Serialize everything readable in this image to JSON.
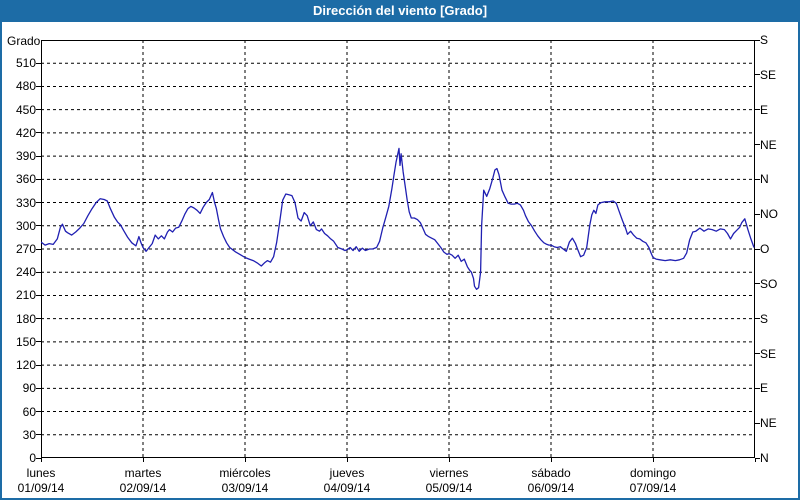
{
  "window": {
    "title": "Dirección del viento [Grado]"
  },
  "colors": {
    "titlebar_bg": "#1d6ca6",
    "page_border": "#1d6ca6",
    "line": "#2020b2",
    "grid": "#000000",
    "plot_bg": "#ffffff",
    "text": "#000000"
  },
  "chart_data": {
    "type": "line",
    "title": "Dirección del viento [Grado]",
    "ylabel": "Grado",
    "ylim": [
      0,
      540
    ],
    "grid": "dashed",
    "legend_position": "none",
    "y_left_ticks": [
      0,
      30,
      60,
      90,
      120,
      150,
      180,
      210,
      240,
      270,
      300,
      330,
      360,
      390,
      420,
      450,
      480,
      510
    ],
    "y_right_ticks": [
      {
        "deg": 540,
        "label": "S"
      },
      {
        "deg": 495,
        "label": "SE"
      },
      {
        "deg": 450,
        "label": "E"
      },
      {
        "deg": 405,
        "label": "NE"
      },
      {
        "deg": 360,
        "label": "N"
      },
      {
        "deg": 315,
        "label": "NO"
      },
      {
        "deg": 270,
        "label": "O"
      },
      {
        "deg": 225,
        "label": "SO"
      },
      {
        "deg": 180,
        "label": "S"
      },
      {
        "deg": 135,
        "label": "SE"
      },
      {
        "deg": 90,
        "label": "E"
      },
      {
        "deg": 45,
        "label": "NE"
      },
      {
        "deg": 0,
        "label": "N"
      }
    ],
    "x_days": [
      {
        "name": "lunes",
        "date": "01/09/14"
      },
      {
        "name": "martes",
        "date": "02/09/14"
      },
      {
        "name": "miércoles",
        "date": "03/09/14"
      },
      {
        "name": "jueves",
        "date": "04/09/14"
      },
      {
        "name": "viernes",
        "date": "05/09/14"
      },
      {
        "name": "sábado",
        "date": "06/09/14"
      },
      {
        "name": "domingo",
        "date": "07/09/14"
      }
    ],
    "xlim_days": [
      0,
      7
    ],
    "series": [
      {
        "name": "Dirección del viento",
        "unit": "Grado",
        "x_unit": "days",
        "points": [
          [
            0.0,
            279
          ],
          [
            0.04,
            275
          ],
          [
            0.08,
            277
          ],
          [
            0.12,
            276
          ],
          [
            0.16,
            283
          ],
          [
            0.19,
            298
          ],
          [
            0.21,
            302
          ],
          [
            0.24,
            293
          ],
          [
            0.26,
            291
          ],
          [
            0.3,
            288
          ],
          [
            0.34,
            292
          ],
          [
            0.38,
            297
          ],
          [
            0.42,
            303
          ],
          [
            0.46,
            313
          ],
          [
            0.5,
            322
          ],
          [
            0.54,
            330
          ],
          [
            0.58,
            335
          ],
          [
            0.62,
            334
          ],
          [
            0.65,
            332
          ],
          [
            0.68,
            322
          ],
          [
            0.72,
            311
          ],
          [
            0.75,
            305
          ],
          [
            0.78,
            301
          ],
          [
            0.81,
            294
          ],
          [
            0.85,
            285
          ],
          [
            0.89,
            278
          ],
          [
            0.93,
            274
          ],
          [
            0.96,
            286
          ],
          [
            0.98,
            278
          ],
          [
            1.0,
            272
          ],
          [
            1.03,
            267
          ],
          [
            1.06,
            272
          ],
          [
            1.09,
            277
          ],
          [
            1.12,
            288
          ],
          [
            1.15,
            283
          ],
          [
            1.18,
            287
          ],
          [
            1.21,
            283
          ],
          [
            1.24,
            292
          ],
          [
            1.26,
            295
          ],
          [
            1.29,
            292
          ],
          [
            1.32,
            297
          ],
          [
            1.35,
            298
          ],
          [
            1.38,
            306
          ],
          [
            1.41,
            315
          ],
          [
            1.44,
            322
          ],
          [
            1.47,
            325
          ],
          [
            1.5,
            323
          ],
          [
            1.53,
            320
          ],
          [
            1.56,
            316
          ],
          [
            1.59,
            324
          ],
          [
            1.62,
            330
          ],
          [
            1.65,
            334
          ],
          [
            1.68,
            343
          ],
          [
            1.7,
            331
          ],
          [
            1.72,
            322
          ],
          [
            1.74,
            308
          ],
          [
            1.76,
            296
          ],
          [
            1.79,
            286
          ],
          [
            1.82,
            278
          ],
          [
            1.85,
            272
          ],
          [
            1.88,
            269
          ],
          [
            1.91,
            266
          ],
          [
            1.95,
            263
          ],
          [
            2.0,
            259
          ],
          [
            2.04,
            257
          ],
          [
            2.08,
            255
          ],
          [
            2.12,
            252
          ],
          [
            2.16,
            248
          ],
          [
            2.19,
            252
          ],
          [
            2.22,
            255
          ],
          [
            2.25,
            253
          ],
          [
            2.28,
            260
          ],
          [
            2.31,
            278
          ],
          [
            2.34,
            305
          ],
          [
            2.37,
            333
          ],
          [
            2.4,
            341
          ],
          [
            2.43,
            340
          ],
          [
            2.46,
            339
          ],
          [
            2.49,
            330
          ],
          [
            2.52,
            310
          ],
          [
            2.55,
            306
          ],
          [
            2.58,
            317
          ],
          [
            2.61,
            313
          ],
          [
            2.64,
            300
          ],
          [
            2.67,
            305
          ],
          [
            2.7,
            295
          ],
          [
            2.73,
            293
          ],
          [
            2.75,
            296
          ],
          [
            2.78,
            290
          ],
          [
            2.81,
            287
          ],
          [
            2.84,
            283
          ],
          [
            2.87,
            280
          ],
          [
            2.91,
            272
          ],
          [
            2.95,
            270
          ],
          [
            2.98,
            268
          ],
          [
            3.0,
            269
          ],
          [
            3.03,
            272
          ],
          [
            3.06,
            268
          ],
          [
            3.09,
            273
          ],
          [
            3.12,
            267
          ],
          [
            3.15,
            271
          ],
          [
            3.18,
            268
          ],
          [
            3.22,
            270
          ],
          [
            3.25,
            270
          ],
          [
            3.29,
            272
          ],
          [
            3.32,
            280
          ],
          [
            3.35,
            297
          ],
          [
            3.38,
            311
          ],
          [
            3.41,
            325
          ],
          [
            3.44,
            348
          ],
          [
            3.46,
            365
          ],
          [
            3.48,
            382
          ],
          [
            3.51,
            400
          ],
          [
            3.52,
            378
          ],
          [
            3.53,
            393
          ],
          [
            3.55,
            370
          ],
          [
            3.57,
            352
          ],
          [
            3.59,
            333
          ],
          [
            3.61,
            318
          ],
          [
            3.63,
            310
          ],
          [
            3.66,
            310
          ],
          [
            3.69,
            308
          ],
          [
            3.72,
            304
          ],
          [
            3.75,
            295
          ],
          [
            3.77,
            289
          ],
          [
            3.8,
            286
          ],
          [
            3.83,
            284
          ],
          [
            3.86,
            282
          ],
          [
            3.89,
            277
          ],
          [
            3.92,
            272
          ],
          [
            3.95,
            266
          ],
          [
            3.98,
            263
          ],
          [
            4.0,
            264
          ],
          [
            4.03,
            262
          ],
          [
            4.06,
            258
          ],
          [
            4.09,
            262
          ],
          [
            4.12,
            254
          ],
          [
            4.15,
            257
          ],
          [
            4.18,
            247
          ],
          [
            4.2,
            243
          ],
          [
            4.22,
            240
          ],
          [
            4.24,
            232
          ],
          [
            4.25,
            222
          ],
          [
            4.27,
            218
          ],
          [
            4.29,
            220
          ],
          [
            4.31,
            240
          ],
          [
            4.32,
            300
          ],
          [
            4.34,
            346
          ],
          [
            4.37,
            338
          ],
          [
            4.4,
            348
          ],
          [
            4.43,
            362
          ],
          [
            4.45,
            372
          ],
          [
            4.47,
            374
          ],
          [
            4.49,
            366
          ],
          [
            4.52,
            346
          ],
          [
            4.55,
            337
          ],
          [
            4.58,
            329
          ],
          [
            4.61,
            328
          ],
          [
            4.64,
            328
          ],
          [
            4.67,
            329
          ],
          [
            4.7,
            327
          ],
          [
            4.73,
            320
          ],
          [
            4.75,
            313
          ],
          [
            4.78,
            305
          ],
          [
            4.81,
            300
          ],
          [
            4.84,
            293
          ],
          [
            4.87,
            287
          ],
          [
            4.9,
            282
          ],
          [
            4.93,
            278
          ],
          [
            4.96,
            276
          ],
          [
            4.98,
            275
          ],
          [
            5.0,
            275
          ],
          [
            5.03,
            273
          ],
          [
            5.06,
            272
          ],
          [
            5.09,
            273
          ],
          [
            5.12,
            270
          ],
          [
            5.15,
            267
          ],
          [
            5.18,
            279
          ],
          [
            5.21,
            284
          ],
          [
            5.24,
            277
          ],
          [
            5.26,
            270
          ],
          [
            5.29,
            260
          ],
          [
            5.32,
            262
          ],
          [
            5.35,
            272
          ],
          [
            5.38,
            301
          ],
          [
            5.4,
            314
          ],
          [
            5.42,
            320
          ],
          [
            5.44,
            316
          ],
          [
            5.46,
            327
          ],
          [
            5.49,
            330
          ],
          [
            5.53,
            331
          ],
          [
            5.57,
            331
          ],
          [
            5.61,
            332
          ],
          [
            5.64,
            329
          ],
          [
            5.67,
            318
          ],
          [
            5.7,
            307
          ],
          [
            5.73,
            297
          ],
          [
            5.75,
            289
          ],
          [
            5.78,
            293
          ],
          [
            5.81,
            288
          ],
          [
            5.84,
            284
          ],
          [
            5.87,
            283
          ],
          [
            5.9,
            280
          ],
          [
            5.93,
            278
          ],
          [
            5.96,
            272
          ],
          [
            5.98,
            265
          ],
          [
            6.0,
            259
          ],
          [
            6.03,
            257
          ],
          [
            6.07,
            256
          ],
          [
            6.12,
            255
          ],
          [
            6.17,
            256
          ],
          [
            6.22,
            255
          ],
          [
            6.26,
            256
          ],
          [
            6.3,
            258
          ],
          [
            6.33,
            265
          ],
          [
            6.36,
            282
          ],
          [
            6.39,
            292
          ],
          [
            6.42,
            293
          ],
          [
            6.46,
            297
          ],
          [
            6.5,
            293
          ],
          [
            6.54,
            296
          ],
          [
            6.58,
            295
          ],
          [
            6.62,
            293
          ],
          [
            6.66,
            296
          ],
          [
            6.7,
            295
          ],
          [
            6.73,
            290
          ],
          [
            6.76,
            283
          ],
          [
            6.79,
            290
          ],
          [
            6.82,
            294
          ],
          [
            6.85,
            298
          ],
          [
            6.87,
            304
          ],
          [
            6.9,
            309
          ],
          [
            6.93,
            295
          ],
          [
            6.96,
            283
          ],
          [
            6.99,
            272
          ]
        ]
      }
    ]
  }
}
